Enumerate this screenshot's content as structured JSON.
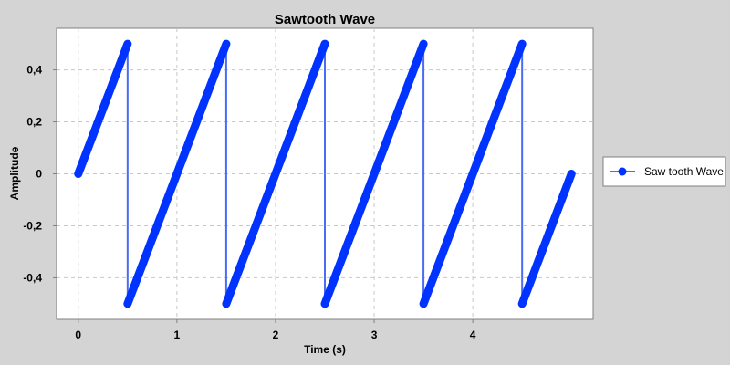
{
  "chart_data": {
    "type": "line",
    "title": "Sawtooth Wave",
    "xlabel": "Time (s)",
    "ylabel": "Amplitude",
    "xlim": [
      -0.22,
      5.22
    ],
    "ylim": [
      -0.56,
      0.56
    ],
    "x_ticks": [
      0,
      1,
      2,
      3,
      4
    ],
    "y_ticks": [
      -0.4,
      -0.2,
      0,
      0.2,
      0.4
    ],
    "x_tick_labels": [
      "0",
      "1",
      "2",
      "3",
      "4"
    ],
    "y_tick_labels": [
      "-0,4",
      "-0,2",
      "0",
      "0,2",
      "0,4"
    ],
    "grid": true,
    "legend_position": "right",
    "series": [
      {
        "name": "Saw tooth Wave",
        "color": "#0033ff",
        "line_color": "#4a6cf5",
        "x": [
          0.0,
          0.5,
          0.5,
          1.5,
          1.5,
          2.5,
          2.5,
          3.5,
          3.5,
          4.5,
          4.5,
          5.0
        ],
        "y": [
          0.0,
          0.5,
          -0.5,
          0.5,
          -0.5,
          0.5,
          -0.5,
          0.5,
          -0.5,
          0.5,
          -0.5,
          0.0
        ]
      }
    ]
  }
}
